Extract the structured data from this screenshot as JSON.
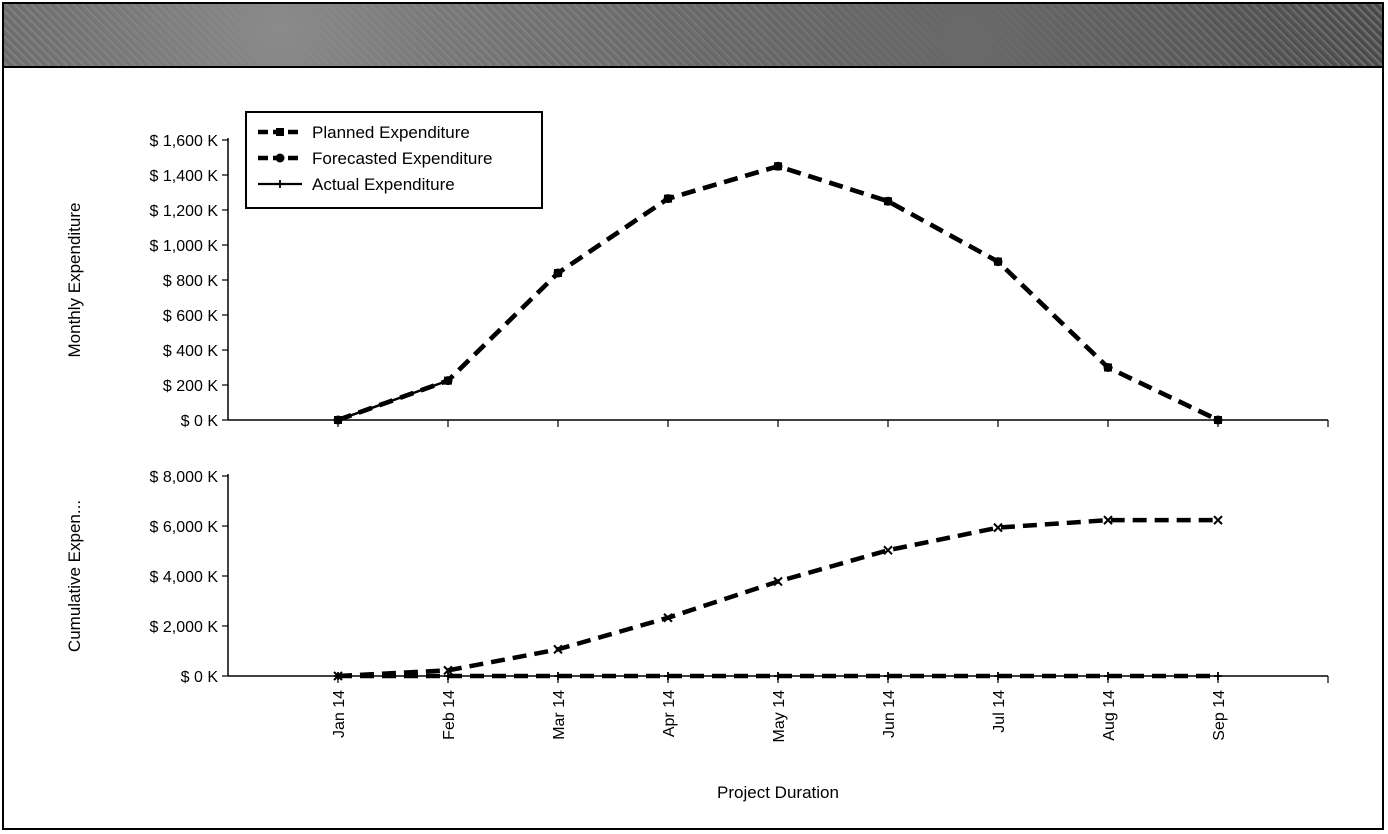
{
  "chart_data": [
    {
      "type": "line",
      "title": "",
      "ylabel": "Monthly Expenditure",
      "xlabel": "",
      "categories": [
        "Jan 14",
        "Feb 14",
        "Mar 14",
        "Apr 14",
        "May 14",
        "Jun 14",
        "Jul 14",
        "Aug 14",
        "Sep 14"
      ],
      "ylim": [
        0,
        1600
      ],
      "yticks": [
        0,
        200,
        400,
        600,
        800,
        1000,
        1200,
        1400,
        1600
      ],
      "ytick_labels": [
        "$ 0 K",
        "$ 200 K",
        "$ 400 K",
        "$ 600 K",
        "$ 800 K",
        "$ 1,000 K",
        "$ 1,200 K",
        "$ 1,400 K",
        "$ 1,600 K"
      ],
      "legend_position": "top-left",
      "series": [
        {
          "name": "Planned Expenditure",
          "style": "dashed",
          "marker": "square",
          "values": [
            0,
            225,
            840,
            1265,
            1450,
            1250,
            905,
            300,
            0
          ]
        },
        {
          "name": "Forecasted Expenditure",
          "style": "dashed",
          "marker": "circle",
          "values": [
            0,
            225,
            840,
            1265,
            1450,
            1250,
            905,
            300,
            0
          ]
        },
        {
          "name": "Actual Expenditure",
          "style": "solid",
          "marker": "plus",
          "values": [
            0,
            225,
            null,
            null,
            null,
            null,
            null,
            null,
            null
          ]
        }
      ]
    },
    {
      "type": "line",
      "title": "",
      "ylabel": "Cumulative Expen...",
      "xlabel": "Project Duration",
      "categories": [
        "Jan 14",
        "Feb 14",
        "Mar 14",
        "Apr 14",
        "May 14",
        "Jun 14",
        "Jul 14",
        "Aug 14",
        "Sep 14"
      ],
      "ylim": [
        0,
        8000
      ],
      "yticks": [
        0,
        2000,
        4000,
        6000,
        8000
      ],
      "ytick_labels": [
        "$ 0 K",
        "$ 2,000 K",
        "$ 4,000 K",
        "$ 6,000 K",
        "$ 8,000 K"
      ],
      "series": [
        {
          "name": "Planned Expenditure",
          "style": "dashed",
          "marker": "x",
          "values": [
            0,
            225,
            1065,
            2330,
            3780,
            5030,
            5935,
            6235,
            6235
          ]
        },
        {
          "name": "Actual Expenditure",
          "style": "dashed",
          "marker": "plus",
          "values": [
            0,
            0,
            0,
            0,
            0,
            0,
            0,
            0,
            0
          ]
        }
      ]
    }
  ]
}
